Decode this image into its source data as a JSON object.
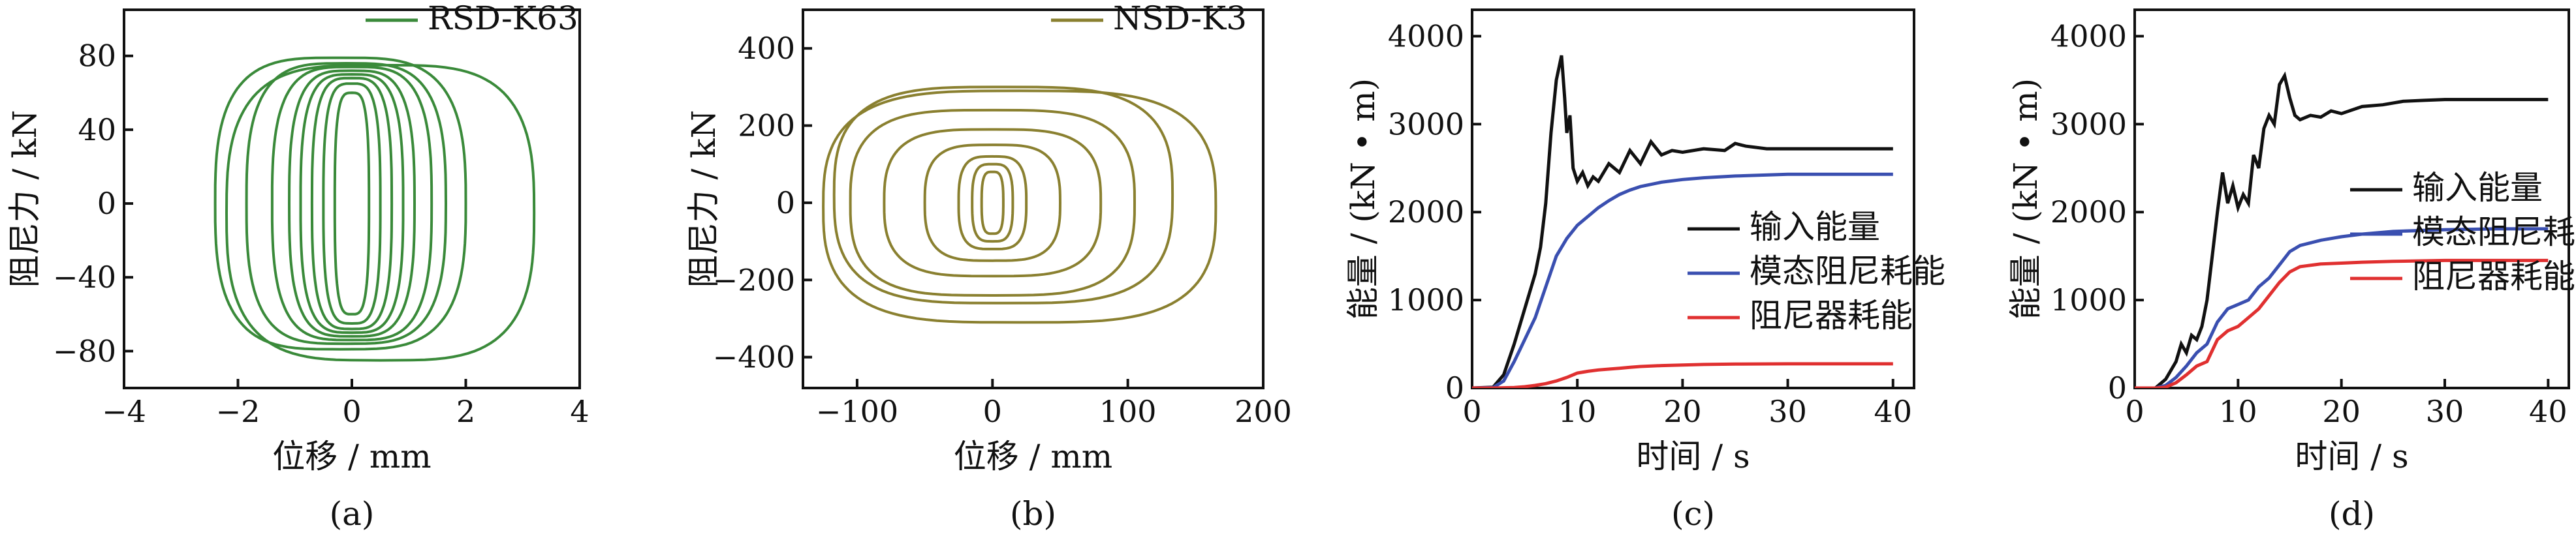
{
  "chart_data": [
    {
      "panel_label": "(a)",
      "type": "line",
      "xlabel": "位移 / mm",
      "ylabel": "阻尼力 / kN",
      "xlim": [
        -4,
        4
      ],
      "ylim": [
        -100,
        105
      ],
      "xticks": [
        -4,
        -2,
        0,
        2,
        4
      ],
      "yticks": [
        -80,
        -40,
        0,
        40,
        80
      ],
      "xtick_labels": [
        "−4",
        "−2",
        "0",
        "2",
        "4"
      ],
      "ytick_labels": [
        "−80",
        "−40",
        "0",
        "40",
        "80"
      ],
      "legend": "top-right",
      "series": [
        {
          "name": "RSD-K63",
          "color": "#3a8a3a",
          "loops": [
            {
              "cx": 0,
              "cy": 0,
              "rx": 0.3,
              "ry": 60
            },
            {
              "cx": 0,
              "cy": 0,
              "rx": 0.5,
              "ry": 65
            },
            {
              "cx": 0,
              "cy": 0,
              "rx": 0.7,
              "ry": 68
            },
            {
              "cx": 0,
              "cy": 0,
              "rx": 0.9,
              "ry": 70
            },
            {
              "cx": 0,
              "cy": 0,
              "rx": 1.1,
              "ry": 72
            },
            {
              "cx": 0,
              "cy": 0,
              "rx": 1.4,
              "ry": 74
            },
            {
              "cx": -0.1,
              "cy": 0,
              "rx": 1.75,
              "ry": 76
            },
            {
              "cx": -0.2,
              "cy": 0,
              "rx": 2.2,
              "ry": 79
            },
            {
              "cx": 0.5,
              "cy": -5,
              "rx": 2.7,
              "ry": 80
            }
          ]
        }
      ]
    },
    {
      "panel_label": "(b)",
      "type": "line",
      "xlabel": "位移 / mm",
      "ylabel": "阻尼力 / kN",
      "xlim": [
        -140,
        200
      ],
      "ylim": [
        -480,
        500
      ],
      "xticks": [
        -100,
        0,
        100,
        200
      ],
      "yticks": [
        -400,
        -200,
        0,
        200,
        400
      ],
      "xtick_labels": [
        "−100",
        "0",
        "100",
        "200"
      ],
      "ytick_labels": [
        "−400",
        "−200",
        "0",
        "200",
        "400"
      ],
      "legend": "top-right",
      "series": [
        {
          "name": "NSD-K3",
          "color": "#8a8030",
          "loops": [
            {
              "cx": 0,
              "cy": 0,
              "rx": 8,
              "ry": 80
            },
            {
              "cx": 0,
              "cy": 0,
              "rx": 15,
              "ry": 100
            },
            {
              "cx": 0,
              "cy": 0,
              "rx": 25,
              "ry": 120
            },
            {
              "cx": 0,
              "cy": 0,
              "rx": 50,
              "ry": 150
            },
            {
              "cx": 0,
              "cy": 0,
              "rx": 80,
              "ry": 190
            },
            {
              "cx": 0,
              "cy": 0,
              "rx": 105,
              "ry": 240
            },
            {
              "cx": 8,
              "cy": 20,
              "rx": 125,
              "ry": 280
            },
            {
              "cx": 20,
              "cy": -10,
              "rx": 145,
              "ry": 300
            }
          ]
        }
      ]
    },
    {
      "panel_label": "(c)",
      "type": "line",
      "xlabel": "时间 / s",
      "ylabel": "能量 / (kN • m)",
      "xlim": [
        0,
        42
      ],
      "ylim": [
        0,
        4300
      ],
      "xticks": [
        0,
        10,
        20,
        30,
        40
      ],
      "yticks": [
        0,
        1000,
        2000,
        3000,
        4000
      ],
      "xtick_labels": [
        "0",
        "10",
        "20",
        "30",
        "40"
      ],
      "ytick_labels": [
        "0",
        "1000",
        "2000",
        "3000",
        "4000"
      ],
      "legend": "center-right",
      "series": [
        {
          "name": "输入能量",
          "color": "#111111",
          "x": [
            0,
            2,
            3,
            4,
            5,
            6,
            6.5,
            7,
            7.5,
            8,
            8.5,
            8.8,
            9,
            9.3,
            9.6,
            10,
            10.5,
            11,
            11.5,
            12,
            13,
            14,
            15,
            16,
            17,
            18,
            19,
            20,
            22,
            24,
            25,
            26,
            28,
            30,
            35,
            40
          ],
          "y": [
            0,
            10,
            150,
            500,
            900,
            1300,
            1600,
            2100,
            2900,
            3500,
            3780,
            3300,
            2900,
            3100,
            2500,
            2350,
            2450,
            2300,
            2400,
            2350,
            2550,
            2450,
            2700,
            2550,
            2800,
            2650,
            2700,
            2680,
            2720,
            2700,
            2780,
            2750,
            2720,
            2720,
            2720,
            2720
          ]
        },
        {
          "name": "模态阻尼耗能",
          "color": "#3a4fb0",
          "x": [
            0,
            2,
            3,
            4,
            5,
            6,
            7,
            8,
            9,
            10,
            11,
            12,
            13,
            14,
            15,
            16,
            18,
            20,
            22,
            25,
            30,
            35,
            40
          ],
          "y": [
            0,
            5,
            80,
            300,
            550,
            800,
            1150,
            1500,
            1700,
            1850,
            1950,
            2050,
            2130,
            2200,
            2250,
            2290,
            2340,
            2370,
            2390,
            2410,
            2430,
            2430,
            2430
          ]
        },
        {
          "name": "阻尼器耗能",
          "color": "#e03030",
          "x": [
            0,
            2,
            4,
            5,
            6,
            7,
            8,
            9,
            10,
            11,
            12,
            13,
            14,
            15,
            16,
            18,
            20,
            22,
            25,
            30,
            35,
            40
          ],
          "y": [
            0,
            0,
            5,
            15,
            30,
            50,
            80,
            120,
            170,
            190,
            205,
            215,
            225,
            235,
            245,
            255,
            262,
            268,
            272,
            275,
            275,
            275
          ]
        }
      ]
    },
    {
      "panel_label": "(d)",
      "type": "line",
      "xlabel": "时间 / s",
      "ylabel": "能量 / (kN • m)",
      "xlim": [
        0,
        42
      ],
      "ylim": [
        0,
        4300
      ],
      "xticks": [
        0,
        10,
        20,
        30,
        40
      ],
      "yticks": [
        0,
        1000,
        2000,
        3000,
        4000
      ],
      "xtick_labels": [
        "0",
        "10",
        "20",
        "30",
        "40"
      ],
      "ytick_labels": [
        "0",
        "1000",
        "2000",
        "3000",
        "4000"
      ],
      "legend": "center-right",
      "series": [
        {
          "name": "输入能量",
          "color": "#111111",
          "x": [
            0,
            2,
            3,
            4,
            4.5,
            5,
            5.5,
            6,
            6.5,
            7,
            7.5,
            8,
            8.5,
            9,
            9.5,
            10,
            10.5,
            11,
            11.5,
            12,
            12.5,
            13,
            13.5,
            14,
            14.5,
            15,
            15.5,
            16,
            17,
            18,
            19,
            20,
            22,
            24,
            26,
            28,
            30,
            35,
            40
          ],
          "y": [
            0,
            0,
            100,
            300,
            500,
            400,
            600,
            550,
            700,
            1000,
            1500,
            2000,
            2450,
            2100,
            2300,
            2050,
            2200,
            2100,
            2650,
            2500,
            2950,
            3100,
            3000,
            3450,
            3550,
            3300,
            3100,
            3050,
            3100,
            3080,
            3150,
            3120,
            3200,
            3220,
            3260,
            3270,
            3280,
            3280,
            3280
          ]
        },
        {
          "name": "模态阻尼耗能",
          "color": "#3a4fb0",
          "x": [
            0,
            2,
            3,
            4,
            5,
            6,
            7,
            8,
            9,
            10,
            11,
            12,
            13,
            14,
            15,
            16,
            18,
            20,
            22,
            25,
            30,
            35,
            40
          ],
          "y": [
            0,
            0,
            30,
            120,
            250,
            400,
            500,
            750,
            900,
            950,
            1000,
            1150,
            1250,
            1400,
            1550,
            1620,
            1680,
            1720,
            1750,
            1780,
            1800,
            1810,
            1810
          ]
        },
        {
          "name": "阻尼器耗能",
          "color": "#e03030",
          "x": [
            0,
            2,
            3,
            4,
            5,
            6,
            7,
            8,
            9,
            10,
            11,
            12,
            13,
            14,
            15,
            16,
            18,
            20,
            22,
            25,
            30,
            35,
            40
          ],
          "y": [
            0,
            0,
            10,
            60,
            150,
            250,
            300,
            550,
            650,
            700,
            800,
            900,
            1050,
            1200,
            1320,
            1380,
            1410,
            1420,
            1430,
            1440,
            1450,
            1450,
            1450
          ]
        }
      ]
    }
  ]
}
